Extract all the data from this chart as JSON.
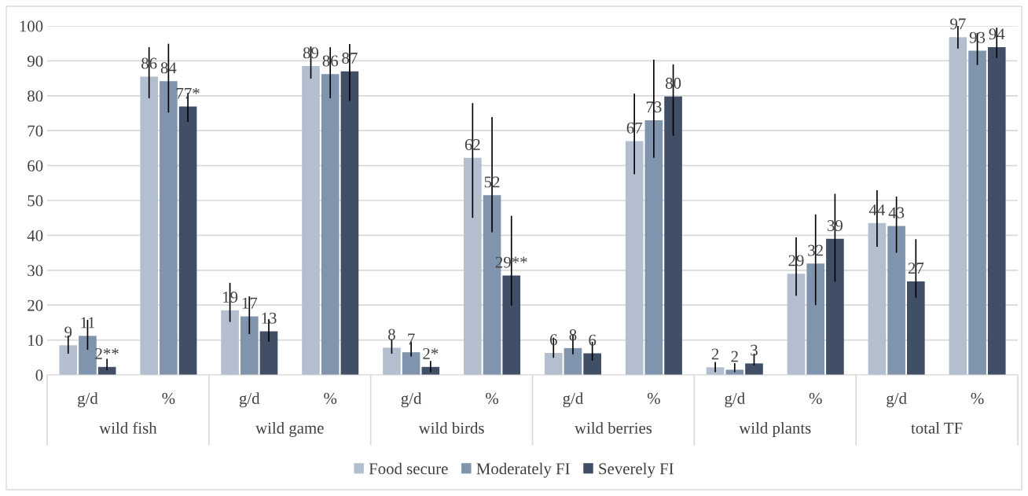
{
  "chart_data": {
    "type": "bar",
    "categories": [
      "g/d",
      "%",
      "g/d",
      "%",
      "g/d",
      "%",
      "g/d",
      "%",
      "g/d",
      "%",
      "g/d",
      "%"
    ],
    "annotations": [
      "wild fish",
      "wild game",
      "wild birds",
      "wild berries",
      "wild plants",
      "total TF"
    ],
    "series": [
      {
        "name": "Food secure",
        "color": "#b3bfcf",
        "values": [
          8.5,
          85.5,
          18.5,
          88.5,
          7.8,
          62.2,
          6.3,
          67.0,
          2.2,
          29.0,
          43.5,
          96.8
        ],
        "errors": [
          [
            6.1,
            11.3
          ],
          [
            79.3,
            93.9
          ],
          [
            15.2,
            26.4
          ],
          [
            84.9,
            94.1
          ],
          [
            6.1,
            10.2
          ],
          [
            45.0,
            77.9
          ],
          [
            4.9,
            10.7
          ],
          [
            57.5,
            80.6
          ],
          [
            0.8,
            3.7
          ],
          [
            22.7,
            39.4
          ],
          [
            36.7,
            52.9
          ],
          [
            93.5,
            100
          ]
        ],
        "value_labels": [
          "9",
          "86",
          "19",
          "89",
          "8",
          "62",
          "6",
          "67",
          "2",
          "29",
          "44",
          "97"
        ]
      },
      {
        "name": "Moderately FI",
        "color": "#8094ad",
        "values": [
          11.2,
          84.2,
          16.8,
          86.2,
          6.5,
          51.5,
          7.7,
          73.0,
          1.5,
          31.9,
          42.7,
          92.9
        ],
        "errors": [
          [
            7.2,
            15.8
          ],
          [
            75.2,
            94.9
          ],
          [
            11.7,
            22.5
          ],
          [
            79.3,
            93.9
          ],
          [
            5.3,
            9.5
          ],
          [
            40.9,
            73.9
          ],
          [
            5.9,
            11.7
          ],
          [
            62.2,
            90.3
          ],
          [
            0.8,
            3.4
          ],
          [
            20.0,
            46.0
          ],
          [
            35.0,
            51.1
          ],
          [
            88.8,
            98.0
          ]
        ],
        "value_labels": [
          "11",
          "84",
          "17",
          "86",
          "7",
          "52",
          "8",
          "73",
          "2",
          "32",
          "43",
          "93"
        ]
      },
      {
        "name": "Severely FI",
        "color": "#414f66",
        "values": [
          2.3,
          76.9,
          12.5,
          87.0,
          2.3,
          28.5,
          6.2,
          79.8,
          3.3,
          39.0,
          26.8,
          93.9
        ],
        "errors": [
          [
            1.4,
            4.6
          ],
          [
            72.5,
            80.8
          ],
          [
            9.5,
            16.0
          ],
          [
            78.5,
            94.8
          ],
          [
            0.8,
            4.0
          ],
          [
            19.9,
            45.6
          ],
          [
            4.1,
            9.5
          ],
          [
            68.5,
            89.0
          ],
          [
            2.7,
            6.1
          ],
          [
            26.7,
            51.9
          ],
          [
            22.1,
            38.9
          ],
          [
            90.8,
            99.5
          ]
        ],
        "value_labels": [
          "2**",
          "77*",
          "13",
          "87",
          "2*",
          "29**",
          "6",
          "80",
          "3",
          "39",
          "27",
          "94"
        ]
      }
    ],
    "ylim": [
      0,
      100
    ],
    "yticks": [
      0,
      10,
      20,
      30,
      40,
      50,
      60,
      70,
      80,
      90,
      100
    ],
    "grid": "y",
    "legend": "bottom"
  }
}
